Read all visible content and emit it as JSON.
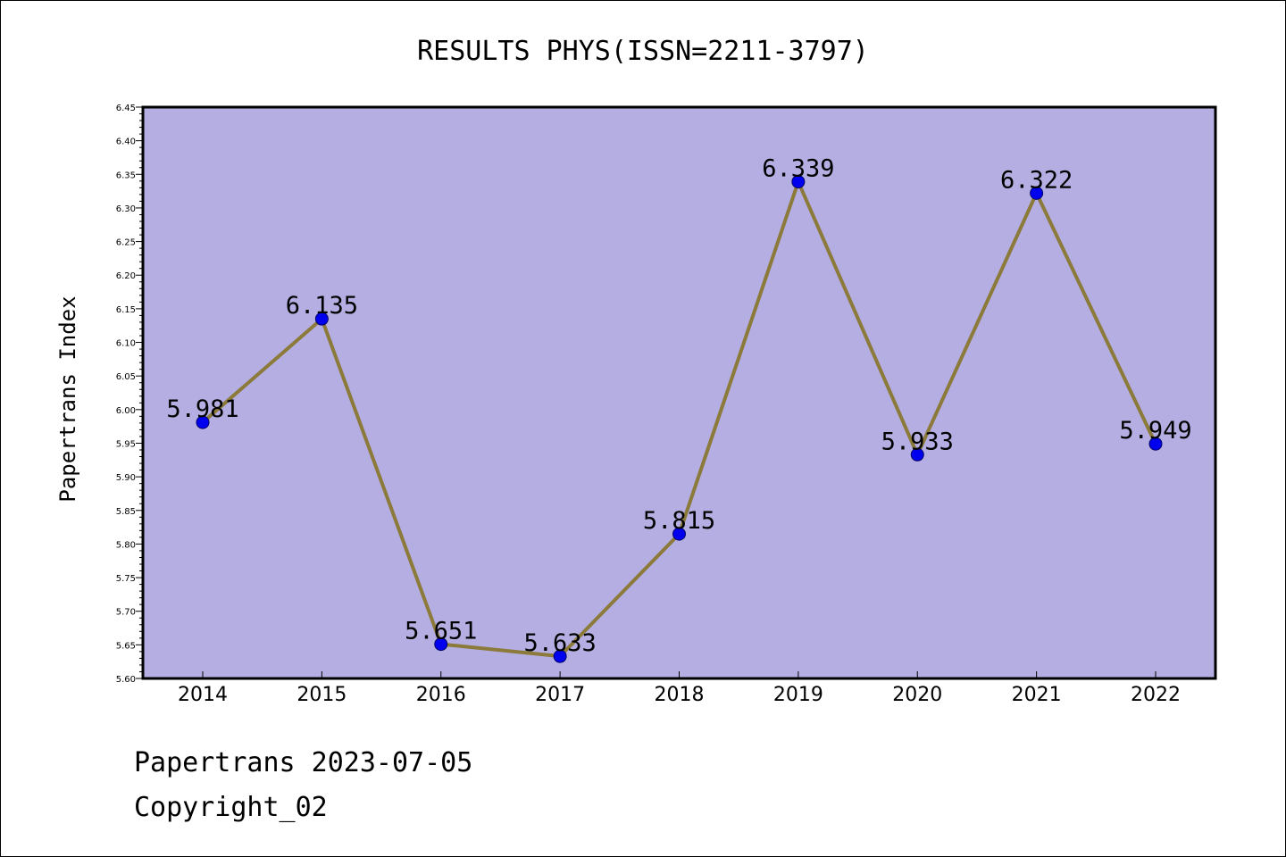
{
  "chart_data": {
    "type": "line",
    "title": "RESULTS PHYS(ISSN=2211-3797)",
    "ylabel": "Papertrans Index",
    "xlabel": "",
    "categories": [
      "2014",
      "2015",
      "2016",
      "2017",
      "2018",
      "2019",
      "2020",
      "2021",
      "2022"
    ],
    "values": [
      5.981,
      6.135,
      5.651,
      5.633,
      5.815,
      6.339,
      5.933,
      6.322,
      5.949
    ],
    "value_labels": [
      "5.981",
      "6.135",
      "5.651",
      "5.633",
      "5.815",
      "6.339",
      "5.933",
      "6.322",
      "5.949"
    ],
    "ylim": [
      5.6,
      6.45
    ],
    "yticks": [
      "5.60",
      "5.65",
      "5.70",
      "5.75",
      "5.80",
      "5.85",
      "5.90",
      "5.95",
      "6.00",
      "6.05",
      "6.10",
      "6.15",
      "6.20",
      "6.25",
      "6.30",
      "6.35",
      "6.40",
      "6.45"
    ],
    "grid": false,
    "colors": {
      "plot_bg": "#b4aee2",
      "line": "#8b7a3a",
      "marker": "#0000ee"
    }
  },
  "footer": {
    "line1": "Papertrans 2023-07-05",
    "line2": "Copyright_02"
  }
}
